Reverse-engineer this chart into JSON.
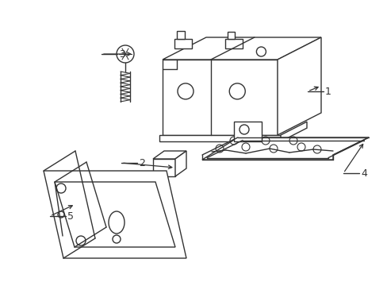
{
  "bg_color": "#ffffff",
  "line_color": "#333333",
  "lw": 1.0,
  "figsize": [
    4.89,
    3.6
  ],
  "dpi": 100
}
